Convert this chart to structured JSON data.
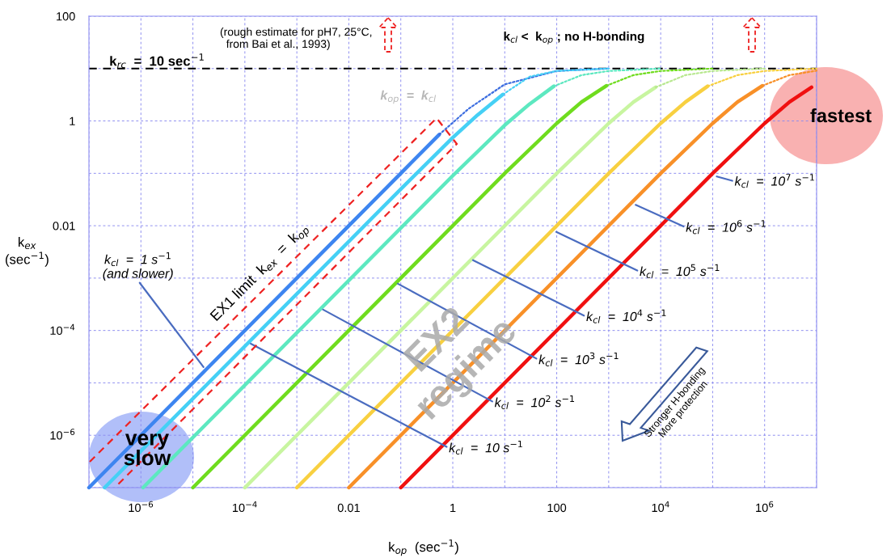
{
  "chart_data": {
    "type": "line",
    "xlabel": "k$_{op}$  (sec$^{−1}$)",
    "ylabel": "k$_{ex}$\n(sec$^{−1}$)",
    "log": "xy",
    "grid": true,
    "marker": "none",
    "xlim": [
      1e-07,
      10000000.0
    ],
    "ylim": [
      1e-07,
      100
    ],
    "xticks": [
      {
        "value": 1e-07,
        "label": null
      },
      {
        "value": 1e-06,
        "label": "10$^{−6}$"
      },
      {
        "value": 1e-05,
        "label": null
      },
      {
        "value": 0.0001,
        "label": "10$^{−4}$"
      },
      {
        "value": 0.001,
        "label": null
      },
      {
        "value": 0.01,
        "label": "0.01"
      },
      {
        "value": 0.1,
        "label": null
      },
      1,
      {
        "value": 10,
        "label": null
      },
      100,
      {
        "value": 1000,
        "label": null
      },
      {
        "value": 10000.0,
        "label": "10$^{4}$"
      },
      {
        "value": 100000.0,
        "label": null
      },
      {
        "value": 1000000.0,
        "label": "10$^{6}$"
      },
      {
        "value": 10000000.0,
        "label": null
      }
    ],
    "yticks": [
      {
        "value": 1e-07,
        "label": null
      },
      {
        "value": 1e-06,
        "label": "10$^{−6}$"
      },
      {
        "value": 1e-05,
        "label": null
      },
      {
        "value": 0.0001,
        "label": "10$^{−4}$"
      },
      {
        "value": 0.001,
        "label": null
      },
      {
        "value": 0.01,
        "label": "0.01"
      },
      {
        "value": 0.1,
        "label": null
      },
      1,
      {
        "value": 10,
        "label": null
      },
      100
    ],
    "series": [
      {
        "color": "#3d85f0",
        "line_style": "solid",
        "x": [
          1e-07,
          0.01,
          0.1,
          0.55
        ],
        "values": [
          1e-07,
          0.01,
          0.1,
          0.55
        ]
      },
      {
        "color": "#45d0f5",
        "line_style": "solid",
        "x": [
          2e-07,
          0.1,
          1,
          3,
          9.2
        ],
        "values": [
          1e-07,
          0.05,
          0.48,
          1.3,
          3.2
        ]
      },
      {
        "color": "#5de8c0",
        "line_style": "solid",
        "x": [
          1.1e-06,
          1,
          10,
          30,
          88
        ],
        "values": [
          1e-07,
          0.09,
          0.83,
          2.1,
          4.6
        ]
      },
      {
        "color": "#6fdc1e",
        "line_style": "solid",
        "x": [
          1e-05,
          10,
          100,
          300,
          900
        ],
        "values": [
          1e-07,
          0.1,
          0.9,
          2.3,
          4.7
        ]
      },
      {
        "color": "#c8f5a0",
        "line_style": "solid",
        "x": [
          0.0001,
          100,
          1000,
          3000,
          8000
        ],
        "values": [
          1e-07,
          0.1,
          0.9,
          2.3,
          4.4
        ]
      },
      {
        "color": "#f8d040",
        "line_style": "solid",
        "x": [
          0.001,
          1000,
          10000.0,
          30000.0,
          80000.0
        ],
        "values": [
          1e-07,
          0.1,
          0.9,
          2.3,
          4.6
        ]
      },
      {
        "color": "#f89028",
        "line_style": "solid",
        "x": [
          0.01,
          10000.0,
          100000.0,
          300000.0,
          900000.0
        ],
        "values": [
          1e-07,
          0.1,
          0.9,
          2.3,
          4.7
        ]
      },
      {
        "color": "#f01010",
        "line_style": "solid",
        "x": [
          0.1,
          100000.0,
          1000000.0,
          3000000.0,
          8000000.0
        ],
        "values": [
          1e-07,
          0.1,
          0.9,
          2.3,
          4.4
        ]
      },
      {
        "color": "#3d6ee0",
        "line_style": "dotted",
        "x": [
          0.55,
          2,
          10,
          100,
          1000
        ],
        "values": [
          0.55,
          1.7,
          5,
          9,
          10
        ]
      },
      {
        "color": "#45d0f5",
        "line_style": "dotted",
        "x": [
          9.2,
          30,
          100,
          1000
        ],
        "values": [
          3.2,
          7,
          9,
          10
        ]
      },
      {
        "color": "#5de8c0",
        "line_style": "dotted",
        "x": [
          88,
          300,
          1000,
          10000.0
        ],
        "values": [
          4.6,
          7.5,
          9,
          10
        ]
      },
      {
        "color": "#6fdc1e",
        "line_style": "dotted",
        "x": [
          900,
          3000,
          10000.0,
          100000.0
        ],
        "values": [
          4.7,
          7.5,
          9,
          10
        ]
      },
      {
        "color": "#b8e890",
        "line_style": "dotted",
        "x": [
          8000,
          30000.0,
          100000.0,
          1000000.0
        ],
        "values": [
          4.4,
          7.5,
          9,
          10
        ]
      },
      {
        "color": "#f8d040",
        "line_style": "dotted",
        "x": [
          80000.0,
          300000.0,
          1000000.0,
          10000000.0
        ],
        "values": [
          4.6,
          7.5,
          9,
          10
        ]
      },
      {
        "color": "#f89028",
        "line_style": "dotted",
        "x": [
          900000.0,
          3000000.0,
          10000000.0
        ],
        "values": [
          4.7,
          7.5,
          9.1
        ]
      }
    ],
    "ref_lines": [
      {
        "axis": "y",
        "value": 10,
        "label": "k$_{rc}$  =  10 sec$^{−1}$",
        "color": "#000000",
        "line_style": "dashed"
      }
    ],
    "annotations": [
      "(rough estimate for pH7, 25°C,\n  from Bai et al., 1993)",
      "k$_{cl}$ <  k$_{op}$ ; no H-bonding",
      "k$_{op}$  =  k$_{cl}$",
      "EX1 limit  k$_{ex}$  =  k$_{op}$",
      "EX2\nregime",
      "Stronger H-bonding\nMore protection",
      "very\nslow",
      "fastest",
      {
        "text": "k$_{cl}$  =  1 s$^{−1}$\n(and slower)",
        "x": 1.6e-05,
        "y": 2e-05
      },
      {
        "text": "k$_{cl}$  =  10 s$^{−1}$",
        "x": 0.00013,
        "y": 5.6e-05
      },
      {
        "text": "k$_{cl}$  =  10$^{2}$ s$^{−1}$",
        "x": 0.0032,
        "y": 0.00025
      },
      {
        "text": "k$_{cl}$  =  10$^{3}$ s$^{−1}$",
        "x": 0.088,
        "y": 0.00078
      },
      {
        "text": "k$_{cl}$  =  10$^{4}$ s$^{−1}$",
        "x": 2.45,
        "y": 0.0022
      },
      {
        "text": "k$_{cl}$  =  10$^{5}$ s$^{−1}$",
        "x": 98,
        "y": 0.0076
      },
      {
        "text": "k$_{cl}$  =  10$^{6}$ s$^{−1}$",
        "x": 3300,
        "y": 0.025
      },
      {
        "text": "k$_{cl}$  =  10$^{7}$ s$^{−1}$",
        "x": 120000.0,
        "y": 0.087
      }
    ]
  }
}
